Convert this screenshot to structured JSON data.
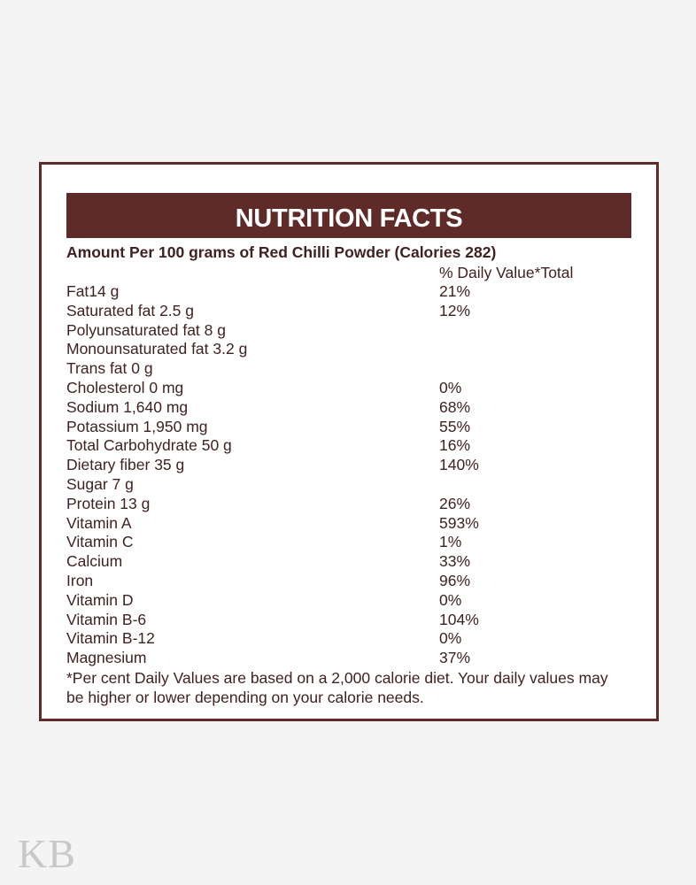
{
  "title": "NUTRITION FACTS",
  "amount_line": "Amount Per 100 grams of Red Chilli Powder (Calories 282)",
  "dv_header": "% Daily Value*Total",
  "rows": [
    {
      "label": "Fat14 g",
      "dv": "21%"
    },
    {
      "label": "Saturated fat 2.5 g",
      "dv": "12%"
    },
    {
      "label": "Polyunsaturated fat 8 g",
      "dv": ""
    },
    {
      "label": "Monounsaturated fat 3.2 g",
      "dv": ""
    },
    {
      "label": "Trans fat 0 g",
      "dv": ""
    },
    {
      "label": "Cholesterol 0 mg",
      "dv": "0%"
    },
    {
      "label": "Sodium 1,640 mg",
      "dv": "68%"
    },
    {
      "label": "Potassium 1,950 mg",
      "dv": "55%"
    },
    {
      "label": "Total Carbohydrate 50 g",
      "dv": "16%"
    },
    {
      "label": "Dietary fiber 35 g",
      "dv": "140%"
    },
    {
      "label": "Sugar 7 g",
      "dv": ""
    },
    {
      "label": "Protein 13 g",
      "dv": "26%"
    },
    {
      "label": "Vitamin A",
      "dv": "593%"
    },
    {
      "label": "Vitamin C",
      "dv": "1%"
    },
    {
      "label": "Calcium",
      "dv": "33%"
    },
    {
      "label": "Iron",
      "dv": "96%"
    },
    {
      "label": "Vitamin D",
      "dv": "0%"
    },
    {
      "label": "Vitamin B-6",
      "dv": "104%"
    },
    {
      "label": "Vitamin B-12",
      "dv": "0%"
    },
    {
      "label": "Magnesium",
      "dv": "37%"
    }
  ],
  "footnote": "*Per cent Daily Values are based on a 2,000 calorie diet. Your daily values may be higher or lower depending on your calorie needs.",
  "logo": "KB",
  "colors": {
    "brand": "#5e2b29",
    "text": "#3f2221",
    "background": "#f4f4f4"
  }
}
